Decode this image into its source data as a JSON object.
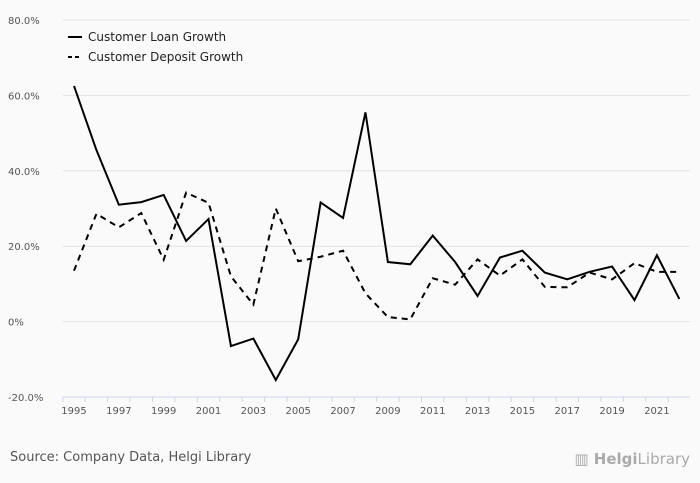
{
  "chart_data": {
    "type": "line",
    "title": "",
    "xlabel": "",
    "ylabel": "",
    "x": [
      1995,
      1996,
      1997,
      1998,
      1999,
      2000,
      2001,
      2002,
      2003,
      2004,
      2005,
      2006,
      2007,
      2008,
      2009,
      2010,
      2011,
      2012,
      2013,
      2014,
      2015,
      2016,
      2017,
      2018,
      2019,
      2020,
      2021,
      2022
    ],
    "xticks": [
      "1995",
      "1997",
      "1999",
      "2001",
      "2003",
      "2005",
      "2007",
      "2009",
      "2011",
      "2013",
      "2015",
      "2017",
      "2019",
      "2021"
    ],
    "ylim": [
      -20,
      80
    ],
    "yticks": [
      "-20.0%",
      "0%",
      "20.0%",
      "40.0%",
      "60.0%",
      "80.0%"
    ],
    "grid": true,
    "legend_position": "top-left",
    "series": [
      {
        "name": "Customer Loan Growth",
        "style": "solid",
        "values": [
          62.5,
          45.5,
          31,
          31.7,
          33.6,
          21.4,
          27.2,
          -6.5,
          -4.5,
          -15.5,
          -4.7,
          31.6,
          27.5,
          55.5,
          15.8,
          15.2,
          22.8,
          15.8,
          6.8,
          17,
          18.8,
          13,
          11.2,
          13.2,
          14.6,
          5.7,
          17.6,
          6
        ]
      },
      {
        "name": "Customer Deposit Growth",
        "style": "dashed",
        "values": [
          13.5,
          28.6,
          25,
          28.8,
          16.4,
          34.2,
          31.5,
          12,
          4.5,
          30,
          16,
          17.2,
          18.8,
          7.5,
          1.2,
          0.6,
          11.5,
          9.8,
          16.5,
          12.2,
          16.5,
          9.2,
          9.1,
          13,
          11.2,
          15.5,
          13.2,
          13.2
        ]
      }
    ]
  },
  "footer": {
    "source": "Source: Company Data, Helgi Library",
    "logo": "HelgiLibrary"
  }
}
